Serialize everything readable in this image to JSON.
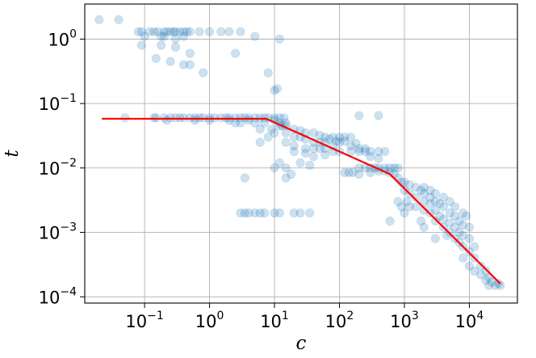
{
  "chart_data": {
    "type": "scatter",
    "title": "",
    "xlabel": "c",
    "ylabel": "t",
    "xscale": "log",
    "yscale": "log",
    "xlim": [
      0.012,
      55000
    ],
    "ylim": [
      8e-05,
      3.5
    ],
    "grid": true,
    "x_ticks": [
      {
        "base": "10",
        "exp": "−1"
      },
      {
        "base": "10",
        "exp": "0"
      },
      {
        "base": "10",
        "exp": "1"
      },
      {
        "base": "10",
        "exp": "2"
      },
      {
        "base": "10",
        "exp": "3"
      },
      {
        "base": "10",
        "exp": "4"
      }
    ],
    "y_ticks": [
      {
        "base": "10",
        "exp": "−4"
      },
      {
        "base": "10",
        "exp": "−3"
      },
      {
        "base": "10",
        "exp": "−2"
      },
      {
        "base": "10",
        "exp": "−1"
      },
      {
        "base": "10",
        "exp": "0"
      }
    ],
    "point_color": "#1f77b4",
    "point_alpha": 0.22,
    "line_color": "#ff0000",
    "points": [
      [
        0.02,
        2.0
      ],
      [
        0.04,
        2.0
      ],
      [
        0.08,
        1.3
      ],
      [
        0.09,
        1.3
      ],
      [
        0.1,
        1.1
      ],
      [
        0.12,
        1.3
      ],
      [
        0.14,
        1.3
      ],
      [
        0.16,
        1.3
      ],
      [
        0.18,
        1.1
      ],
      [
        0.2,
        1.3
      ],
      [
        0.22,
        1.3
      ],
      [
        0.25,
        1.3
      ],
      [
        0.28,
        1.3
      ],
      [
        0.3,
        1.3
      ],
      [
        0.35,
        1.3
      ],
      [
        0.4,
        1.3
      ],
      [
        0.45,
        1.3
      ],
      [
        0.5,
        1.3
      ],
      [
        0.7,
        1.3
      ],
      [
        1.0,
        1.3
      ],
      [
        1.5,
        1.3
      ],
      [
        0.2,
        1.1
      ],
      [
        0.3,
        1.0
      ],
      [
        0.4,
        1.1
      ],
      [
        0.09,
        0.8
      ],
      [
        0.18,
        0.8
      ],
      [
        0.3,
        0.75
      ],
      [
        0.5,
        0.6
      ],
      [
        2.5,
        0.6
      ],
      [
        0.15,
        0.5
      ],
      [
        0.25,
        0.45
      ],
      [
        0.4,
        0.4
      ],
      [
        0.5,
        0.4
      ],
      [
        0.8,
        0.3
      ],
      [
        8.0,
        0.3
      ],
      [
        2.0,
        1.3
      ],
      [
        3.0,
        1.3
      ],
      [
        5.0,
        1.1
      ],
      [
        12.0,
        1.0
      ],
      [
        10.0,
        0.16
      ],
      [
        11.0,
        0.17
      ],
      [
        0.05,
        0.06
      ],
      [
        0.14,
        0.06
      ],
      [
        0.15,
        0.06
      ],
      [
        0.2,
        0.06
      ],
      [
        0.25,
        0.06
      ],
      [
        0.3,
        0.06
      ],
      [
        0.35,
        0.06
      ],
      [
        0.4,
        0.06
      ],
      [
        0.5,
        0.06
      ],
      [
        0.6,
        0.06
      ],
      [
        0.7,
        0.06
      ],
      [
        0.8,
        0.06
      ],
      [
        1.0,
        0.06
      ],
      [
        1.2,
        0.06
      ],
      [
        1.5,
        0.06
      ],
      [
        1.8,
        0.06
      ],
      [
        2.0,
        0.06
      ],
      [
        2.5,
        0.06
      ],
      [
        3.0,
        0.06
      ],
      [
        3.5,
        0.06
      ],
      [
        4.0,
        0.06
      ],
      [
        5.0,
        0.06
      ],
      [
        6.0,
        0.06
      ],
      [
        7.0,
        0.06
      ],
      [
        8.0,
        0.06
      ],
      [
        10.0,
        0.06
      ],
      [
        12.0,
        0.06
      ],
      [
        14.0,
        0.06
      ],
      [
        0.22,
        0.055
      ],
      [
        0.6,
        0.055
      ],
      [
        1.0,
        0.055
      ],
      [
        2.0,
        0.055
      ],
      [
        2.5,
        0.05
      ],
      [
        3.0,
        0.05
      ],
      [
        4.0,
        0.055
      ],
      [
        5.0,
        0.05
      ],
      [
        7.0,
        0.05
      ],
      [
        10.0,
        0.055
      ],
      [
        12.0,
        0.05
      ],
      [
        6.0,
        0.04
      ],
      [
        9.0,
        0.04
      ],
      [
        13.0,
        0.045
      ],
      [
        15.0,
        0.05
      ],
      [
        6.0,
        0.025
      ],
      [
        8.0,
        0.03
      ],
      [
        10.0,
        0.035
      ],
      [
        12.0,
        0.045
      ],
      [
        15.0,
        0.045
      ],
      [
        20.0,
        0.04
      ],
      [
        25.0,
        0.038
      ],
      [
        30.0,
        0.035
      ],
      [
        40.0,
        0.035
      ],
      [
        50.0,
        0.032
      ],
      [
        60.0,
        0.03
      ],
      [
        80.0,
        0.03
      ],
      [
        100.0,
        0.03
      ],
      [
        120.0,
        0.03
      ],
      [
        150.0,
        0.03
      ],
      [
        15.0,
        0.035
      ],
      [
        20.0,
        0.03
      ],
      [
        25.0,
        0.03
      ],
      [
        30.0,
        0.028
      ],
      [
        40.0,
        0.025
      ],
      [
        50.0,
        0.025
      ],
      [
        60.0,
        0.025
      ],
      [
        80.0,
        0.022
      ],
      [
        15.0,
        0.025
      ],
      [
        20.0,
        0.022
      ],
      [
        30.0,
        0.02
      ],
      [
        40.0,
        0.02
      ],
      [
        50.0,
        0.02
      ],
      [
        60.0,
        0.02
      ],
      [
        80.0,
        0.018
      ],
      [
        100.0,
        0.018
      ],
      [
        150.0,
        0.018
      ],
      [
        200.0,
        0.018
      ],
      [
        250.0,
        0.018
      ],
      [
        300.0,
        0.018
      ],
      [
        400.0,
        0.018
      ],
      [
        500.0,
        0.018
      ],
      [
        100.0,
        0.025
      ],
      [
        150.0,
        0.022
      ],
      [
        200.0,
        0.02
      ],
      [
        250.0,
        0.02
      ],
      [
        300.0,
        0.015
      ],
      [
        400.0,
        0.014
      ],
      [
        20.0,
        0.018
      ],
      [
        30.0,
        0.017
      ],
      [
        60.0,
        0.016
      ],
      [
        40.0,
        0.015
      ],
      [
        70.0,
        0.028
      ],
      [
        90.0,
        0.026
      ],
      [
        120.0,
        0.026
      ],
      [
        180.0,
        0.024
      ],
      [
        200.0,
        0.065
      ],
      [
        400.0,
        0.065
      ],
      [
        10.0,
        0.01
      ],
      [
        12.0,
        0.012
      ],
      [
        15.0,
        0.01
      ],
      [
        18.0,
        0.008
      ],
      [
        25.0,
        0.012
      ],
      [
        35.0,
        0.011
      ],
      [
        3.5,
        0.007
      ],
      [
        15.0,
        0.007
      ],
      [
        120.0,
        0.0085
      ],
      [
        140.0,
        0.0085
      ],
      [
        160.0,
        0.0085
      ],
      [
        200.0,
        0.01
      ],
      [
        250.0,
        0.01
      ],
      [
        300.0,
        0.01
      ],
      [
        350.0,
        0.01
      ],
      [
        400.0,
        0.01
      ],
      [
        500.0,
        0.01
      ],
      [
        600.0,
        0.01
      ],
      [
        700.0,
        0.01
      ],
      [
        800.0,
        0.01
      ],
      [
        200.0,
        0.008
      ],
      [
        300.0,
        0.0085
      ],
      [
        400.0,
        0.009
      ],
      [
        500.0,
        0.009
      ],
      [
        600.0,
        0.0085
      ],
      [
        700.0,
        0.008
      ],
      [
        800.0,
        0.007
      ],
      [
        900.0,
        0.006
      ],
      [
        1000.0,
        0.006
      ],
      [
        1200.0,
        0.0055
      ],
      [
        1500.0,
        0.005
      ],
      [
        1800.0,
        0.0045
      ],
      [
        2000.0,
        0.004
      ],
      [
        2500.0,
        0.0035
      ],
      [
        3000.0,
        0.003
      ],
      [
        3500.0,
        0.0028
      ],
      [
        4000.0,
        0.0025
      ],
      [
        5000.0,
        0.002
      ],
      [
        6000.0,
        0.0018
      ],
      [
        7000.0,
        0.0015
      ],
      [
        8000.0,
        0.0013
      ],
      [
        1000.0,
        0.0045
      ],
      [
        1200.0,
        0.004
      ],
      [
        1500.0,
        0.0035
      ],
      [
        2000.0,
        0.003
      ],
      [
        2500.0,
        0.0028
      ],
      [
        3000.0,
        0.0022
      ],
      [
        3500.0,
        0.0018
      ],
      [
        4000.0,
        0.0016
      ],
      [
        5000.0,
        0.0014
      ],
      [
        6000.0,
        0.0012
      ],
      [
        7000.0,
        0.001
      ],
      [
        8000.0,
        0.0009
      ],
      [
        10000.0,
        0.0008
      ],
      [
        1500.0,
        0.0025
      ],
      [
        2000.0,
        0.0022
      ],
      [
        2500.0,
        0.002
      ],
      [
        3000.0,
        0.0015
      ],
      [
        4000.0,
        0.0012
      ],
      [
        5000.0,
        0.001
      ],
      [
        6000.0,
        0.0008
      ],
      [
        7000.0,
        0.0007
      ],
      [
        8000.0,
        0.0006
      ],
      [
        10000.0,
        0.0005
      ],
      [
        12000.0,
        0.0004
      ],
      [
        15000.0,
        0.0003
      ],
      [
        18000.0,
        0.00025
      ],
      [
        20000.0,
        0.0002
      ],
      [
        22000.0,
        0.00017
      ],
      [
        25000.0,
        0.00015
      ],
      [
        28000.0,
        0.00016
      ],
      [
        30000.0,
        0.00015
      ],
      [
        10000.0,
        0.0003
      ],
      [
        12000.0,
        0.00025
      ],
      [
        15000.0,
        0.00022
      ],
      [
        18000.0,
        0.00018
      ],
      [
        20000.0,
        0.00015
      ],
      [
        600.0,
        0.0015
      ],
      [
        1000.0,
        0.002
      ],
      [
        1200.0,
        0.0025
      ],
      [
        2000.0,
        0.005
      ],
      [
        2500.0,
        0.0045
      ],
      [
        3000.0,
        0.004
      ],
      [
        4000.0,
        0.0035
      ],
      [
        5000.0,
        0.003
      ],
      [
        6000.0,
        0.0025
      ],
      [
        8000.0,
        0.002
      ],
      [
        9000.0,
        0.0018
      ],
      [
        10000.0,
        0.0012
      ],
      [
        4500.0,
        0.0009
      ],
      [
        3000.0,
        0.0008
      ],
      [
        2000.0,
        0.0012
      ],
      [
        8000.0,
        0.0004
      ],
      [
        12000.0,
        0.0006
      ],
      [
        800.0,
        0.003
      ],
      [
        900.0,
        0.0025
      ],
      [
        1100.0,
        0.003
      ],
      [
        1800.0,
        0.0015
      ],
      [
        3.0,
        0.002
      ],
      [
        3.5,
        0.002
      ],
      [
        5.0,
        0.002
      ],
      [
        7.0,
        0.002
      ],
      [
        10.0,
        0.002
      ],
      [
        12.0,
        0.002
      ],
      [
        20.0,
        0.002
      ],
      [
        25.0,
        0.002
      ],
      [
        35.0,
        0.002
      ],
      [
        4.0,
        0.002
      ],
      [
        6.0,
        0.002
      ]
    ],
    "fit_line": [
      [
        0.022,
        0.058
      ],
      [
        7.5,
        0.058
      ],
      [
        600.0,
        0.008
      ],
      [
        30000.0,
        0.00016
      ]
    ]
  }
}
